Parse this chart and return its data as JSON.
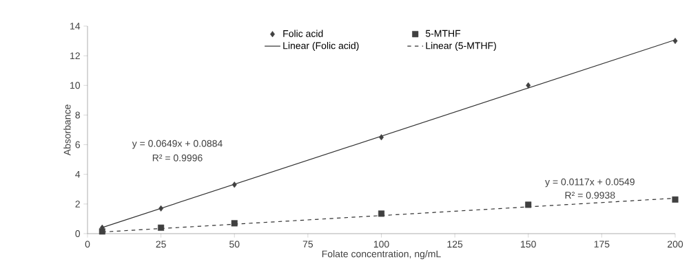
{
  "chart_data": {
    "type": "scatter",
    "xlabel": "Folate concentration, ng/mL",
    "ylabel": "Absorbance",
    "xlim": [
      0,
      200
    ],
    "xticks": [
      0,
      25,
      50,
      75,
      100,
      125,
      150,
      175,
      200
    ],
    "ylim": [
      0,
      14
    ],
    "yticks": [
      0,
      2,
      4,
      6,
      8,
      10,
      12,
      14
    ],
    "grid": false,
    "legend": "top",
    "series": [
      {
        "name": "Folic acid",
        "marker": "diamond",
        "color": "#404040",
        "x": [
          5,
          25,
          50,
          100,
          150,
          200
        ],
        "values": [
          0.4,
          1.7,
          3.3,
          6.5,
          10.0,
          13.0
        ]
      },
      {
        "name": "5-MTHF",
        "marker": "square",
        "color": "#404040",
        "x": [
          5,
          25,
          50,
          100,
          150,
          200
        ],
        "values": [
          0.15,
          0.4,
          0.7,
          1.35,
          1.95,
          2.3
        ]
      },
      {
        "name": "Linear (Folic acid)",
        "type": "line",
        "line_style": "solid",
        "color": "#303030",
        "x": [
          5,
          200
        ],
        "values": [
          0.41,
          13.07
        ]
      },
      {
        "name": "Linear (5-MTHF)",
        "type": "line",
        "line_style": "dashed",
        "color": "#303030",
        "x": [
          5,
          200
        ],
        "values": [
          0.11,
          2.39
        ]
      }
    ],
    "annotations": [
      "y = 0.0649x + 0.0884",
      "R² = 0.9996",
      "y = 0.0117x + 0.0549",
      "R² = 0.9938"
    ]
  }
}
